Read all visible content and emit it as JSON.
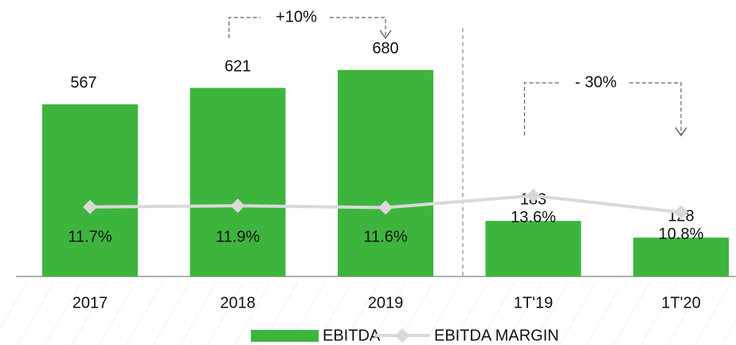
{
  "chart_data": {
    "type": "bar",
    "categories": [
      "2017",
      "2018",
      "2019",
      "1T'19",
      "1T'20"
    ],
    "series": [
      {
        "name": "EBITDA",
        "color": "#3db53d",
        "values": [
          567,
          621,
          680,
          183,
          128
        ]
      },
      {
        "name": "EBITDA MARGIN",
        "color": "#d9d9d9",
        "type": "line",
        "axis": "y2",
        "values": [
          11.7,
          11.9,
          11.6,
          13.6,
          10.8
        ],
        "value_labels": [
          "11.7%",
          "11.9%",
          "11.6%",
          "13.6%",
          "10.8%"
        ]
      }
    ],
    "ylim": [
      0,
      900
    ],
    "y2lim": [
      0,
      46
    ],
    "annotations": [
      {
        "text": "+10%",
        "from": 1,
        "to": 2
      },
      {
        "text": "- 30%",
        "from": 3,
        "to": 4
      }
    ],
    "legend": "bottom"
  }
}
